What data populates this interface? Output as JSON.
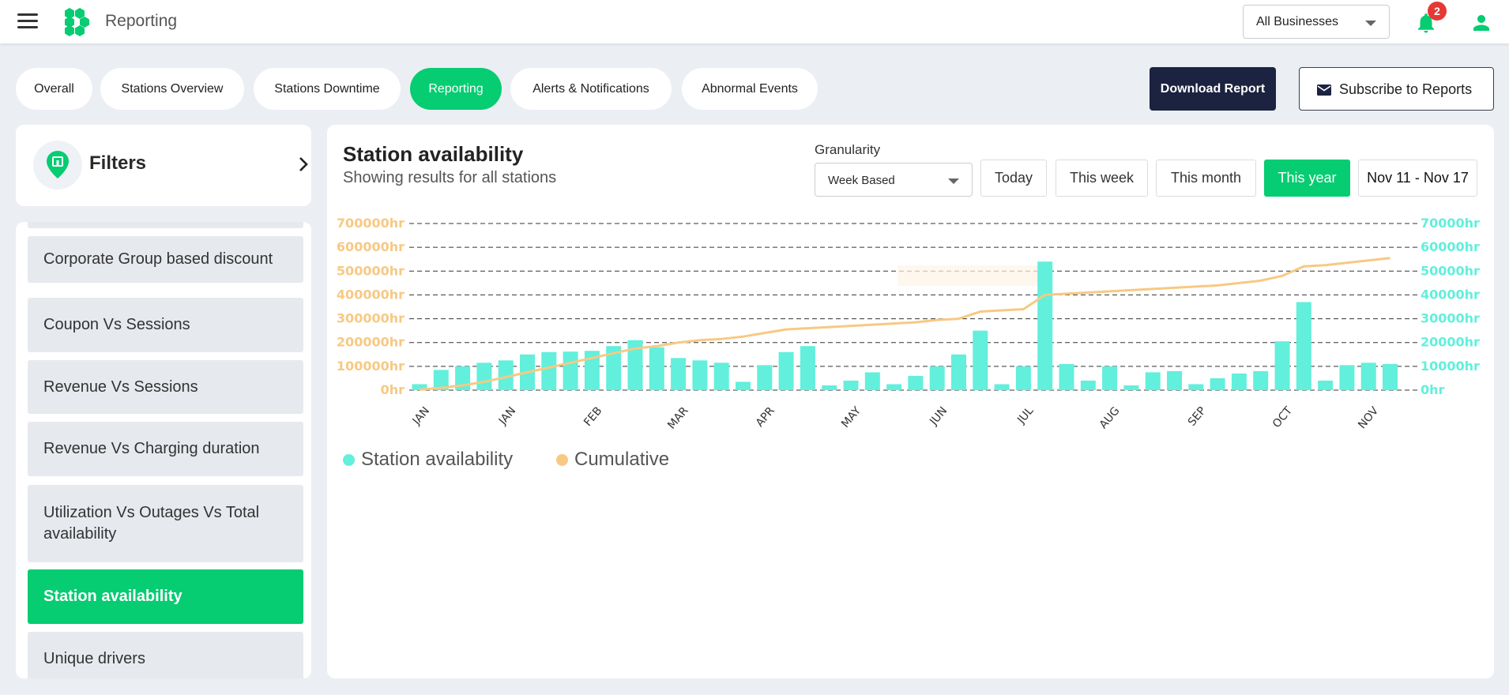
{
  "header": {
    "title": "Reporting",
    "business_select": "All Businesses",
    "notification_count": "2"
  },
  "tabs": [
    {
      "label": "Overall"
    },
    {
      "label": "Stations Overview"
    },
    {
      "label": "Stations Downtime"
    },
    {
      "label": "Reporting",
      "active": true
    },
    {
      "label": "Alerts & Notifications"
    },
    {
      "label": "Abnormal Events"
    }
  ],
  "actions": {
    "download": "Download Report",
    "subscribe": "Subscribe to Reports"
  },
  "filters": {
    "label": "Filters"
  },
  "sidebar": {
    "items": [
      {
        "label": "Corporate Group based discount"
      },
      {
        "label": "Coupon Vs Sessions"
      },
      {
        "label": "Revenue Vs Sessions"
      },
      {
        "label": "Revenue Vs Charging duration"
      },
      {
        "label": "Utilization Vs Outages Vs Total availability"
      },
      {
        "label": "Station availability",
        "active": true
      },
      {
        "label": "Unique drivers"
      }
    ]
  },
  "chart_panel": {
    "title": "Station availability",
    "subtitle": "Showing results for all stations",
    "granularity_label": "Granularity",
    "granularity_value": "Week Based",
    "ranges": [
      "Today",
      "This week",
      "This month",
      "This year"
    ],
    "active_range": "This year",
    "date_range": "Nov 11 - Nov 17"
  },
  "colors": {
    "accent": "#06cc72",
    "dark": "#1c2340",
    "bar": "#62efdc",
    "line": "#f7c983"
  },
  "chart_data": {
    "type": "bar",
    "left_axis": {
      "ticks": [
        "0hr",
        "100000hr",
        "200000hr",
        "300000hr",
        "400000hr",
        "500000hr",
        "600000hr",
        "700000hr"
      ],
      "ylim": [
        0,
        700000
      ]
    },
    "right_axis": {
      "ticks": [
        "0hr",
        "10000hr",
        "20000hr",
        "30000hr",
        "40000hr",
        "50000hr",
        "60000hr",
        "70000hr"
      ],
      "ylim": [
        0,
        70000
      ]
    },
    "x_tick_labels": [
      "JAN",
      "JAN",
      "FEB",
      "MAR",
      "APR",
      "MAY",
      "JUN",
      "JUL",
      "AUG",
      "SEP",
      "OCT",
      "NOV"
    ],
    "grid": true,
    "legend_position": "bottom-left",
    "series": [
      {
        "name": "Station availability",
        "axis": "right",
        "values": [
          2500,
          8500,
          10000,
          11500,
          12500,
          15000,
          16000,
          16200,
          16500,
          18500,
          21000,
          18000,
          13500,
          12500,
          11500,
          3500,
          10500,
          16000,
          18500,
          2000,
          4000,
          7500,
          2500,
          6000,
          10000,
          15000,
          25000,
          2500,
          10000,
          54000,
          11000,
          4000,
          10000,
          2000,
          7500,
          8000,
          2500,
          5000,
          7000,
          8000,
          20500,
          37000,
          4000,
          10500,
          11500,
          11000
        ]
      },
      {
        "name": "Cumulative",
        "axis": "left",
        "values": [
          2000,
          10000,
          20000,
          35000,
          55000,
          75000,
          95000,
          115000,
          135000,
          155000,
          175000,
          185000,
          200000,
          210000,
          215000,
          225000,
          240000,
          255000,
          260000,
          265000,
          270000,
          275000,
          280000,
          285000,
          295000,
          300000,
          330000,
          335000,
          340000,
          400000,
          405000,
          410000,
          415000,
          420000,
          425000,
          430000,
          435000,
          440000,
          450000,
          460000,
          480000,
          520000,
          525000,
          535000,
          545000,
          555000
        ]
      }
    ]
  }
}
